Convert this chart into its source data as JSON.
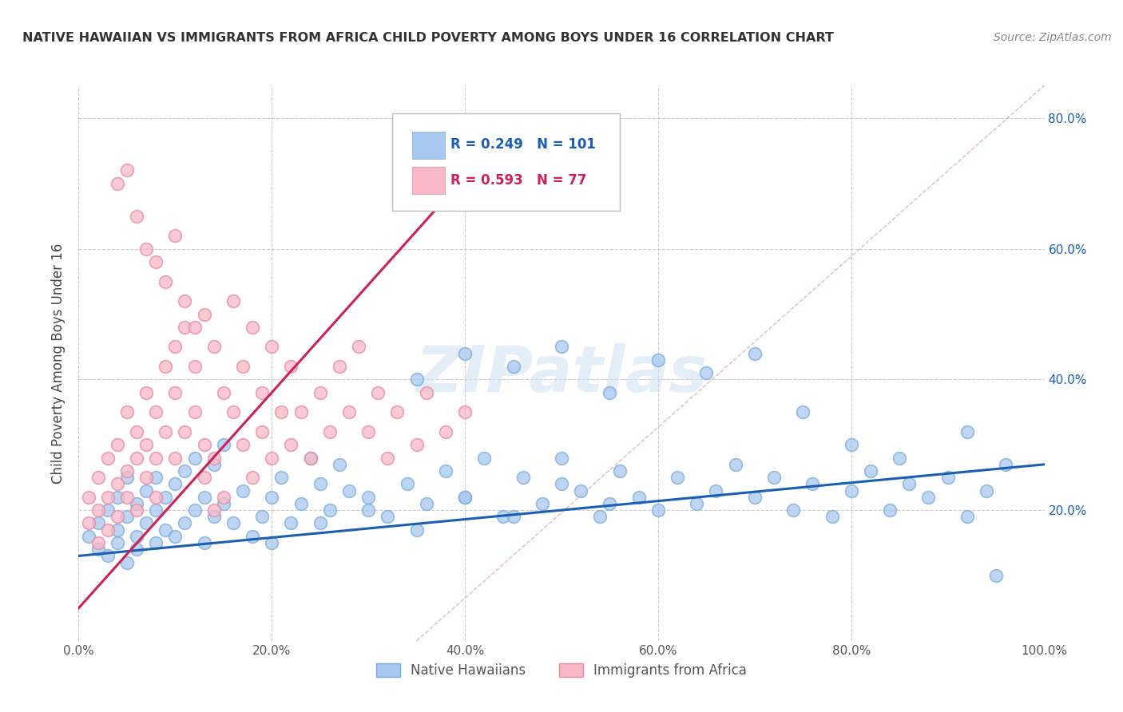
{
  "title": "NATIVE HAWAIIAN VS IMMIGRANTS FROM AFRICA CHILD POVERTY AMONG BOYS UNDER 16 CORRELATION CHART",
  "source": "Source: ZipAtlas.com",
  "ylabel": "Child Poverty Among Boys Under 16",
  "xlim": [
    0.0,
    1.0
  ],
  "ylim": [
    0.0,
    0.85
  ],
  "x_tick_labels": [
    "0.0%",
    "20.0%",
    "40.0%",
    "60.0%",
    "80.0%",
    "100.0%"
  ],
  "x_tick_vals": [
    0.0,
    0.2,
    0.4,
    0.6,
    0.8,
    1.0
  ],
  "y_tick_labels": [
    "20.0%",
    "40.0%",
    "60.0%",
    "80.0%"
  ],
  "y_tick_vals": [
    0.2,
    0.4,
    0.6,
    0.8
  ],
  "blue_color": "#a8c8f0",
  "blue_edge_color": "#7aaad8",
  "pink_color": "#f8b8c8",
  "pink_edge_color": "#e888a0",
  "blue_line_color": "#1a5fb4",
  "pink_line_color": "#cc2255",
  "label_color_blue": "#1a5fb4",
  "label_color_right": "#1a5fb4",
  "R_blue": 0.249,
  "N_blue": 101,
  "R_pink": 0.593,
  "N_pink": 77,
  "legend_label_blue": "Native Hawaiians",
  "legend_label_pink": "Immigrants from Africa",
  "watermark": "ZIPatlas",
  "grid_color": "#cccccc",
  "diag_color": "#ddaaaa",
  "blue_scatter_x": [
    0.01,
    0.02,
    0.02,
    0.03,
    0.03,
    0.04,
    0.04,
    0.04,
    0.05,
    0.05,
    0.05,
    0.06,
    0.06,
    0.06,
    0.07,
    0.07,
    0.08,
    0.08,
    0.08,
    0.09,
    0.09,
    0.1,
    0.1,
    0.11,
    0.11,
    0.12,
    0.12,
    0.13,
    0.13,
    0.14,
    0.14,
    0.15,
    0.15,
    0.16,
    0.17,
    0.18,
    0.19,
    0.2,
    0.21,
    0.22,
    0.23,
    0.24,
    0.25,
    0.26,
    0.27,
    0.28,
    0.3,
    0.32,
    0.34,
    0.36,
    0.38,
    0.4,
    0.42,
    0.44,
    0.46,
    0.48,
    0.5,
    0.52,
    0.54,
    0.56,
    0.58,
    0.6,
    0.62,
    0.64,
    0.66,
    0.68,
    0.7,
    0.72,
    0.74,
    0.76,
    0.78,
    0.8,
    0.82,
    0.84,
    0.86,
    0.88,
    0.9,
    0.92,
    0.94,
    0.96,
    0.35,
    0.4,
    0.45,
    0.5,
    0.55,
    0.6,
    0.65,
    0.7,
    0.75,
    0.8,
    0.2,
    0.25,
    0.3,
    0.35,
    0.4,
    0.45,
    0.5,
    0.55,
    0.85,
    0.92,
    0.95
  ],
  "blue_scatter_y": [
    0.16,
    0.14,
    0.18,
    0.13,
    0.2,
    0.15,
    0.17,
    0.22,
    0.12,
    0.19,
    0.25,
    0.16,
    0.21,
    0.14,
    0.18,
    0.23,
    0.15,
    0.2,
    0.25,
    0.17,
    0.22,
    0.16,
    0.24,
    0.18,
    0.26,
    0.2,
    0.28,
    0.15,
    0.22,
    0.19,
    0.27,
    0.21,
    0.3,
    0.18,
    0.23,
    0.16,
    0.19,
    0.22,
    0.25,
    0.18,
    0.21,
    0.28,
    0.24,
    0.2,
    0.27,
    0.23,
    0.22,
    0.19,
    0.24,
    0.21,
    0.26,
    0.22,
    0.28,
    0.19,
    0.25,
    0.21,
    0.28,
    0.23,
    0.19,
    0.26,
    0.22,
    0.2,
    0.25,
    0.21,
    0.23,
    0.27,
    0.22,
    0.25,
    0.2,
    0.24,
    0.19,
    0.23,
    0.26,
    0.2,
    0.24,
    0.22,
    0.25,
    0.19,
    0.23,
    0.27,
    0.4,
    0.44,
    0.42,
    0.45,
    0.38,
    0.43,
    0.41,
    0.44,
    0.35,
    0.3,
    0.15,
    0.18,
    0.2,
    0.17,
    0.22,
    0.19,
    0.24,
    0.21,
    0.28,
    0.32,
    0.1
  ],
  "pink_scatter_x": [
    0.01,
    0.01,
    0.02,
    0.02,
    0.02,
    0.03,
    0.03,
    0.03,
    0.04,
    0.04,
    0.04,
    0.05,
    0.05,
    0.05,
    0.06,
    0.06,
    0.06,
    0.07,
    0.07,
    0.07,
    0.08,
    0.08,
    0.08,
    0.09,
    0.09,
    0.1,
    0.1,
    0.1,
    0.11,
    0.11,
    0.12,
    0.12,
    0.13,
    0.13,
    0.14,
    0.14,
    0.15,
    0.15,
    0.16,
    0.16,
    0.17,
    0.17,
    0.18,
    0.18,
    0.19,
    0.19,
    0.2,
    0.2,
    0.21,
    0.22,
    0.22,
    0.23,
    0.24,
    0.25,
    0.26,
    0.27,
    0.28,
    0.29,
    0.3,
    0.31,
    0.32,
    0.33,
    0.35,
    0.36,
    0.38,
    0.4,
    0.04,
    0.05,
    0.06,
    0.07,
    0.08,
    0.09,
    0.1,
    0.11,
    0.12,
    0.13,
    0.14
  ],
  "pink_scatter_y": [
    0.18,
    0.22,
    0.15,
    0.25,
    0.2,
    0.17,
    0.28,
    0.22,
    0.19,
    0.3,
    0.24,
    0.22,
    0.35,
    0.26,
    0.2,
    0.32,
    0.28,
    0.25,
    0.38,
    0.3,
    0.22,
    0.35,
    0.28,
    0.32,
    0.42,
    0.28,
    0.38,
    0.45,
    0.32,
    0.48,
    0.35,
    0.42,
    0.3,
    0.5,
    0.28,
    0.45,
    0.38,
    0.22,
    0.35,
    0.52,
    0.3,
    0.42,
    0.25,
    0.48,
    0.32,
    0.38,
    0.28,
    0.45,
    0.35,
    0.3,
    0.42,
    0.35,
    0.28,
    0.38,
    0.32,
    0.42,
    0.35,
    0.45,
    0.32,
    0.38,
    0.28,
    0.35,
    0.3,
    0.38,
    0.32,
    0.35,
    0.7,
    0.72,
    0.65,
    0.6,
    0.58,
    0.55,
    0.62,
    0.52,
    0.48,
    0.25,
    0.2
  ]
}
